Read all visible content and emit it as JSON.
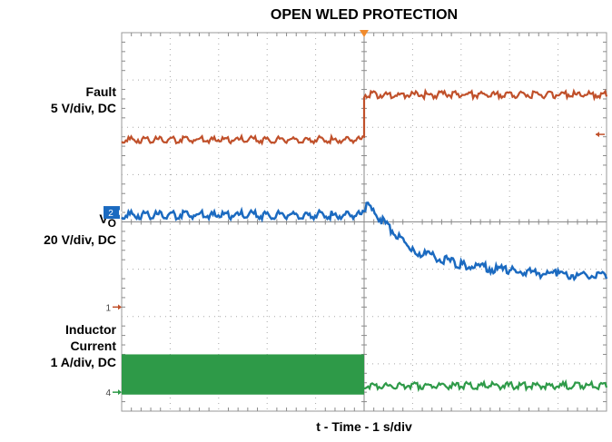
{
  "chart_data": {
    "type": "line",
    "title": "OPEN WLED PROTECTION",
    "xlabel": "t - Time - 1 s/div",
    "grid": true,
    "x_divisions": 10,
    "y_divisions": 8,
    "x_range_div": [
      0,
      10
    ],
    "y_range_div": [
      0,
      8
    ],
    "trigger_x_div": 5,
    "event_x_div": 5,
    "channel_labels": {
      "fault": {
        "name": "Fault",
        "scale": "5 V/div, DC"
      },
      "vo": {
        "name": "V",
        "sub": "O",
        "scale": "20 V/div, DC"
      },
      "inductor": {
        "name1": "Inductor",
        "name2": "Current",
        "scale": "1 A/div, DC"
      }
    },
    "series": [
      {
        "channel": "1",
        "color": "#c0502a",
        "ground_div": 2.2,
        "x": [
          0,
          5,
          5,
          10
        ],
        "y": [
          5.7,
          5.7,
          6.65,
          6.65
        ]
      },
      {
        "channel": "2",
        "color": "#1b6ac0",
        "ground_div": 4.2,
        "x": [
          0,
          5,
          5.05,
          6,
          7,
          8,
          9,
          10
        ],
        "y": [
          4.1,
          4.1,
          4.3,
          3.35,
          3.05,
          2.92,
          2.84,
          2.8
        ]
      },
      {
        "channel": "4",
        "color": "#2e9a48",
        "ground_div": 0.4,
        "switching_band": {
          "x": [
            0,
            5
          ],
          "y_low": 0.35,
          "y_high": 1.2
        },
        "x": [
          5,
          10
        ],
        "y": [
          0.5,
          0.5
        ]
      }
    ],
    "ref_marker": {
      "color": "#c0502a",
      "y_div": 5.85
    }
  },
  "colors": {
    "fault": "#c0502a",
    "vo": "#1b6ac0",
    "inductor": "#2e9a48",
    "grid": "#a8a8a8",
    "trigger": "#f08a2c"
  }
}
